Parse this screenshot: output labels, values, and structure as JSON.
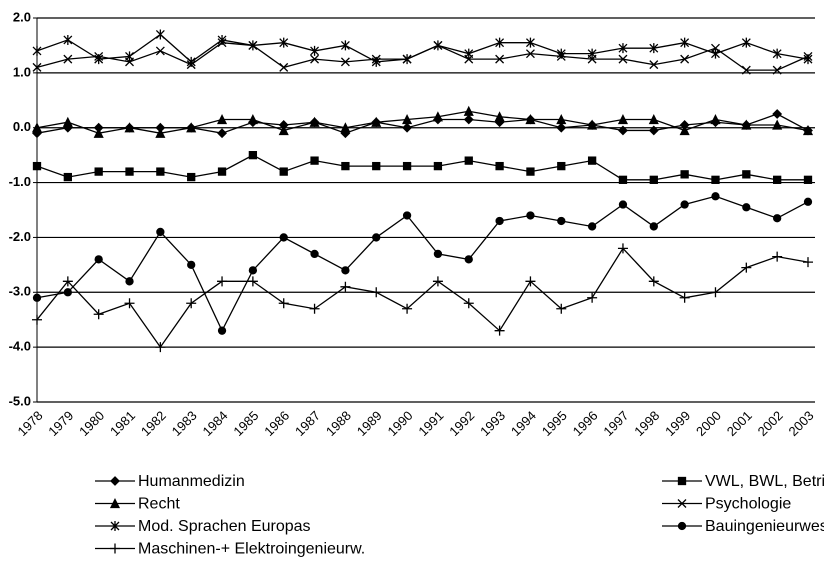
{
  "chart_data": {
    "type": "line",
    "categories": [
      "1978",
      "1979",
      "1980",
      "1981",
      "1982",
      "1983",
      "1984",
      "1985",
      "1986",
      "1987",
      "1988",
      "1989",
      "1990",
      "1991",
      "1992",
      "1993",
      "1994",
      "1995",
      "1996",
      "1997",
      "1998",
      "1999",
      "2000",
      "2001",
      "2002",
      "2003"
    ],
    "ylim": [
      -5,
      2
    ],
    "yticks": [
      {
        "value": -5,
        "label": "-5.0"
      },
      {
        "value": -4,
        "label": "-4.0"
      },
      {
        "value": -3,
        "label": "-3.0"
      },
      {
        "value": -2,
        "label": "-2.0"
      },
      {
        "value": -1,
        "label": "-1.0"
      },
      {
        "value": 0,
        "label": "0.0"
      },
      {
        "value": 1,
        "label": "1.0"
      },
      {
        "value": 2,
        "label": "2.0"
      }
    ],
    "grid": true,
    "series": [
      {
        "name": "Humanmedizin",
        "color": "#000000",
        "marker": "diamond",
        "values": [
          -0.1,
          0,
          0,
          0,
          0,
          0,
          -0.1,
          0.1,
          0.05,
          0.1,
          -0.1,
          0.1,
          0,
          0.15,
          0.15,
          0.1,
          0.15,
          0,
          0.05,
          -0.05,
          -0.05,
          0.05,
          0.1,
          0.05,
          0.25,
          -0.05
        ]
      },
      {
        "name": "VWL, BWL, Betriebsinformatik",
        "color": "#000000",
        "marker": "square",
        "values": [
          -0.7,
          -0.9,
          -0.8,
          -0.8,
          -0.8,
          -0.9,
          -0.8,
          -0.5,
          -0.8,
          -0.6,
          -0.7,
          -0.7,
          -0.7,
          -0.7,
          -0.6,
          -0.7,
          -0.8,
          -0.7,
          -0.6,
          -0.95,
          -0.95,
          -0.85,
          -0.95,
          -0.85,
          -0.95,
          -0.95
        ]
      },
      {
        "name": "Recht",
        "color": "#000000",
        "marker": "triangle",
        "values": [
          0,
          0.1,
          -0.1,
          0,
          -0.1,
          0,
          0.15,
          0.15,
          -0.05,
          0.1,
          0,
          0.1,
          0.15,
          0.2,
          0.3,
          0.2,
          0.15,
          0.15,
          0.05,
          0.15,
          0.15,
          -0.05,
          0.15,
          0.05,
          0.05,
          -0.05
        ]
      },
      {
        "name": "Psychologie",
        "color": "#000000",
        "marker": "x",
        "values": [
          1.1,
          1.25,
          1.3,
          1.2,
          1.4,
          1.15,
          1.55,
          1.5,
          1.1,
          1.25,
          1.2,
          1.25,
          1.25,
          1.5,
          1.25,
          1.25,
          1.35,
          1.3,
          1.25,
          1.25,
          1.15,
          1.25,
          1.45,
          1.05,
          1.05,
          1.3
        ]
      },
      {
        "name": "Mod. Sprachen Europas",
        "color": "#000000",
        "marker": "star",
        "values": [
          1.4,
          1.6,
          1.25,
          1.3,
          1.7,
          1.2,
          1.6,
          1.5,
          1.55,
          1.4,
          1.5,
          1.2,
          1.25,
          1.5,
          1.35,
          1.55,
          1.55,
          1.35,
          1.35,
          1.45,
          1.45,
          1.55,
          1.35,
          1.55,
          1.35,
          1.25
        ]
      },
      {
        "name": "Bauingenieurwesen",
        "color": "#000000",
        "marker": "circle",
        "values": [
          -3.1,
          -3.0,
          -2.4,
          -2.8,
          -1.9,
          -2.5,
          -3.7,
          -2.6,
          -2.0,
          -2.3,
          -2.6,
          -2.0,
          -1.6,
          -2.3,
          -2.4,
          -1.7,
          -1.6,
          -1.7,
          -1.8,
          -1.4,
          -1.8,
          -1.4,
          -1.25,
          -1.45,
          -1.65,
          -1.35
        ]
      },
      {
        "name": "Maschinen-+ Elektroingenieurw.",
        "color": "#000000",
        "marker": "plus",
        "values": [
          -3.5,
          -2.8,
          -3.4,
          -3.2,
          -4.0,
          -3.2,
          -2.8,
          -2.8,
          -3.2,
          -3.3,
          -2.9,
          -3.0,
          -3.3,
          -2.8,
          -3.2,
          -3.7,
          -2.8,
          -3.3,
          -3.1,
          -2.2,
          -2.8,
          -3.1,
          -3.0,
          -2.55,
          -2.35,
          -2.45
        ]
      }
    ]
  }
}
